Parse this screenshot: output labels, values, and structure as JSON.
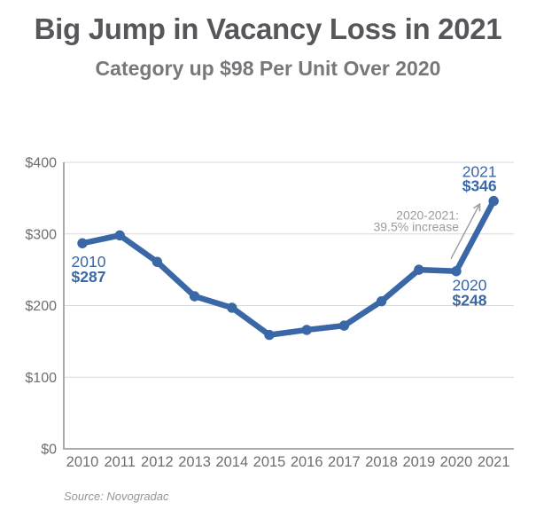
{
  "header": {
    "title": "Big Jump in Vacancy Loss in 2021",
    "subtitle": "Category up $98 Per Unit Over 2020"
  },
  "chart_data": {
    "type": "line",
    "title": "Big Jump in Vacancy Loss in 2021",
    "subtitle": "Category up $98 Per Unit Over 2020",
    "categories": [
      "2010",
      "2011",
      "2012",
      "2013",
      "2014",
      "2015",
      "2016",
      "2017",
      "2018",
      "2019",
      "2020",
      "2021"
    ],
    "values": [
      287,
      298,
      261,
      213,
      197,
      159,
      166,
      172,
      206,
      250,
      248,
      346
    ],
    "xlabel": "",
    "ylabel": "",
    "ylim": [
      0,
      400
    ],
    "yticks": [
      0,
      100,
      200,
      300,
      400
    ],
    "ytick_labels": [
      "$0",
      "$100",
      "$200",
      "$300",
      "$400"
    ],
    "grid": true,
    "legend": false,
    "series_color": "#3A67A6",
    "point_labels": [
      {
        "index": 0,
        "line1": "2010",
        "line2": "$287",
        "position": "below"
      },
      {
        "index": 10,
        "line1": "2020",
        "line2": "$248",
        "position": "below-right"
      },
      {
        "index": 11,
        "line1": "2021",
        "line2": "$346",
        "position": "above"
      }
    ],
    "annotation": {
      "line1": "2020-2021:",
      "line2": "39.5% increase",
      "from_index": 10,
      "to_index": 11
    }
  },
  "footer": {
    "source": "Source: Novogradac"
  },
  "colors": {
    "accent_blue": "#3A67A6",
    "title_text": "#56575B",
    "subtitle_text": "#77787B",
    "axis_text": "#6D6E71",
    "annotation": "#9B9C9E",
    "gridline": "#D8D9DA",
    "axis_line": "#A9ABAE",
    "source_text": "#939598"
  }
}
